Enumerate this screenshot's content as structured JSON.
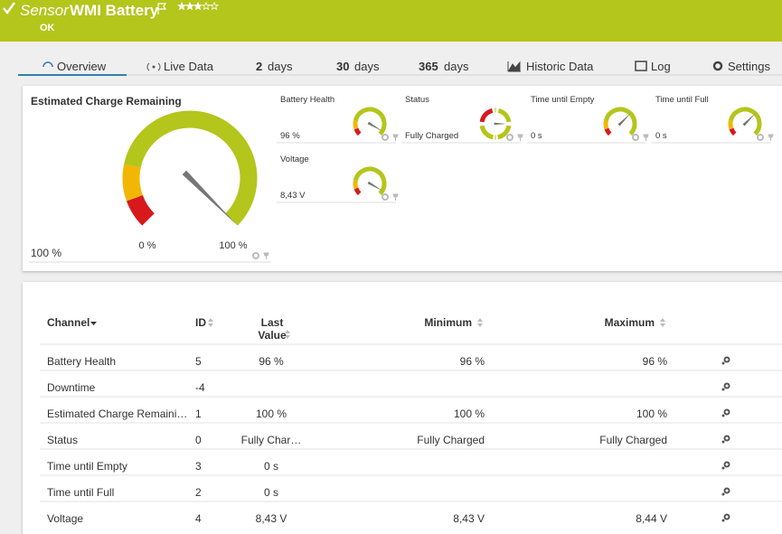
{
  "header": {
    "prefix": "Sensor",
    "title": "WMI Battery",
    "status": "OK"
  },
  "tabs": [
    {
      "label": "Overview"
    },
    {
      "label": "Live Data"
    },
    {
      "number": "2",
      "label": "days"
    },
    {
      "number": "30",
      "label": "days"
    },
    {
      "number": "365",
      "label": "days"
    },
    {
      "label": "Historic Data"
    },
    {
      "label": "Log"
    },
    {
      "label": "Settings"
    }
  ],
  "main_gauge": {
    "title": "Estimated Charge Remaining",
    "value": "100 %",
    "min_label": "0 %",
    "max_label": "100 %"
  },
  "gauges": [
    {
      "title": "Battery Health",
      "value": "96 %"
    },
    {
      "title": "Status",
      "value": "Fully Charged"
    },
    {
      "title": "Time until Empty",
      "value": "0 s"
    },
    {
      "title": "Time until Full",
      "value": "0 s"
    },
    {
      "title": "Voltage",
      "value": "8,43 V"
    }
  ],
  "table": {
    "columns": [
      "Channel",
      "ID",
      "Last Value",
      "Minimum",
      "Maximum"
    ],
    "rows": [
      {
        "channel": "Battery Health",
        "id": "5",
        "last": "96 %",
        "min": "96 %",
        "max": "96 %"
      },
      {
        "channel": "Downtime",
        "id": "-4"
      },
      {
        "channel": "Estimated Charge Remaini…",
        "id": "1",
        "last": "100 %",
        "min": "100 %",
        "max": "100 %"
      },
      {
        "channel": "Status",
        "id": "0",
        "last": "Fully Char…",
        "min": "Fully Charged",
        "max": "Fully Charged"
      },
      {
        "channel": "Time until Empty",
        "id": "3",
        "last": "0 s"
      },
      {
        "channel": "Time until Full",
        "id": "2",
        "last": "0 s"
      },
      {
        "channel": "Voltage",
        "id": "4",
        "last": "8,43 V",
        "min": "8,43 V",
        "max": "8,44 V"
      }
    ]
  }
}
